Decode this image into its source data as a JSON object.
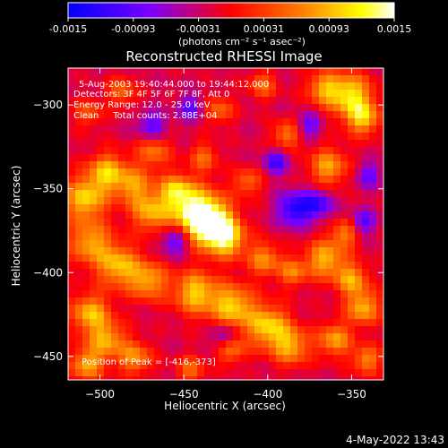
{
  "colorbar": {
    "ticks": [
      "-0.0015",
      "-0.00093",
      "-0.00031",
      "0.00031",
      "0.00093",
      "0.0015"
    ],
    "unit_label": "(photons cm⁻² s⁻¹ asec⁻²)"
  },
  "title": "Reconstructed RHESSI Image",
  "info": {
    "time": "5-Aug-2003 19:40:44.000 to 19:44:12.000",
    "detectors": "Detectors: 3F 4F 5F 6F 7F 8F, Att 0",
    "energy": "Energy Range: 12.0 - 25.0 keV",
    "clean": "Clean     Total counts: 2.88E+04",
    "peak": "Position of Peak = [-416,-373]"
  },
  "footer_timestamp": "4-May-2022 13:43",
  "chart_data": {
    "type": "heatmap",
    "title": "Reconstructed RHESSI Image",
    "xlabel": "Heliocentric X (arcsec)",
    "ylabel": "Heliocentric Y (arcsec)",
    "xlim": [
      -519,
      -331
    ],
    "ylim": [
      -464,
      -278
    ],
    "x_ticks": [
      -500,
      -450,
      -400,
      -350
    ],
    "y_ticks": [
      -300,
      -350,
      -400,
      -450
    ],
    "value_range": [
      -0.0015,
      0.0015
    ],
    "colormap": [
      "#0000ff",
      "#7a00ff",
      "#ff0000",
      "#ff8000",
      "#ffff00",
      "#ffffff"
    ],
    "peak": [
      -416,
      -373
    ],
    "blobs": [
      {
        "x": -443,
        "y": -364,
        "r": 11,
        "a": 0.0015
      },
      {
        "x": -433,
        "y": -372,
        "r": 9,
        "a": 0.0014
      },
      {
        "x": -424,
        "y": -380,
        "r": 8,
        "a": 0.0011
      },
      {
        "x": -509,
        "y": -356,
        "r": 9,
        "a": 0.0012
      },
      {
        "x": -496,
        "y": -340,
        "r": 8,
        "a": 0.0011
      },
      {
        "x": -480,
        "y": -348,
        "r": 8,
        "a": 0.0009
      },
      {
        "x": -470,
        "y": -364,
        "r": 8,
        "a": 0.001
      },
      {
        "x": -455,
        "y": -351,
        "r": 7,
        "a": 0.001
      },
      {
        "x": -506,
        "y": -382,
        "r": 9,
        "a": 0.001
      },
      {
        "x": -489,
        "y": -396,
        "r": 9,
        "a": 0.0011
      },
      {
        "x": -471,
        "y": -405,
        "r": 8,
        "a": 0.001
      },
      {
        "x": -443,
        "y": -412,
        "r": 9,
        "a": 0.0012
      },
      {
        "x": -421,
        "y": -420,
        "r": 9,
        "a": 0.0012
      },
      {
        "x": -400,
        "y": -432,
        "r": 9,
        "a": 0.0012
      },
      {
        "x": -386,
        "y": -444,
        "r": 8,
        "a": 0.001
      },
      {
        "x": -506,
        "y": -424,
        "r": 8,
        "a": 0.0011
      },
      {
        "x": -496,
        "y": -440,
        "r": 8,
        "a": 0.001
      },
      {
        "x": -508,
        "y": -455,
        "r": 7,
        "a": 0.001
      },
      {
        "x": -479,
        "y": -451,
        "r": 7,
        "a": 0.0009
      },
      {
        "x": -351,
        "y": -294,
        "r": 9,
        "a": 0.0013
      },
      {
        "x": -343,
        "y": -308,
        "r": 7,
        "a": 0.0011
      },
      {
        "x": -367,
        "y": -290,
        "r": 7,
        "a": 0.0009
      },
      {
        "x": -364,
        "y": -337,
        "r": 8,
        "a": 0.001
      },
      {
        "x": -389,
        "y": -318,
        "r": 6,
        "a": 0.0008
      },
      {
        "x": -366,
        "y": -392,
        "r": 8,
        "a": 0.0011
      },
      {
        "x": -350,
        "y": -404,
        "r": 7,
        "a": 0.001
      },
      {
        "x": -354,
        "y": -377,
        "r": 6,
        "a": 0.0008
      },
      {
        "x": -343,
        "y": -421,
        "r": 7,
        "a": 0.0011
      },
      {
        "x": -360,
        "y": -440,
        "r": 7,
        "a": 0.001
      },
      {
        "x": -341,
        "y": -452,
        "r": 6,
        "a": 0.0009
      },
      {
        "x": -402,
        "y": -392,
        "r": 7,
        "a": 0.0009
      },
      {
        "x": -385,
        "y": -400,
        "r": 6,
        "a": 0.0008
      },
      {
        "x": -422,
        "y": -446,
        "r": 6,
        "a": 0.0008
      },
      {
        "x": -446,
        "y": -458,
        "r": 6,
        "a": 0.0007
      },
      {
        "x": -468,
        "y": -327,
        "r": 7,
        "a": 0.0008
      },
      {
        "x": -438,
        "y": -331,
        "r": 6,
        "a": 0.0007
      },
      {
        "x": -412,
        "y": -346,
        "r": 6,
        "a": 0.0007
      },
      {
        "x": -429,
        "y": -303,
        "r": 6,
        "a": 0.0007
      },
      {
        "x": -403,
        "y": -288,
        "r": 6,
        "a": 0.0007
      },
      {
        "x": -487,
        "y": -292,
        "r": 6,
        "a": 0.0007
      },
      {
        "x": -507,
        "y": -305,
        "r": 6,
        "a": 0.0006
      },
      {
        "x": -384,
        "y": -362,
        "r": 7,
        "a": -0.0011
      },
      {
        "x": -370,
        "y": -359,
        "r": 6,
        "a": -0.0009
      },
      {
        "x": -455,
        "y": -381,
        "r": 6,
        "a": -0.0009
      },
      {
        "x": -395,
        "y": -334,
        "r": 5,
        "a": -0.0009
      },
      {
        "x": -469,
        "y": -313,
        "r": 6,
        "a": -0.0008
      },
      {
        "x": -375,
        "y": -312,
        "r": 5,
        "a": -0.0007
      },
      {
        "x": -343,
        "y": -370,
        "r": 5,
        "a": -0.0008
      },
      {
        "x": -446,
        "y": -302,
        "r": 5,
        "a": -0.0008
      },
      {
        "x": -426,
        "y": -438,
        "r": 5,
        "a": -0.0007
      },
      {
        "x": -340,
        "y": -342,
        "r": 5,
        "a": -0.0007
      }
    ]
  }
}
